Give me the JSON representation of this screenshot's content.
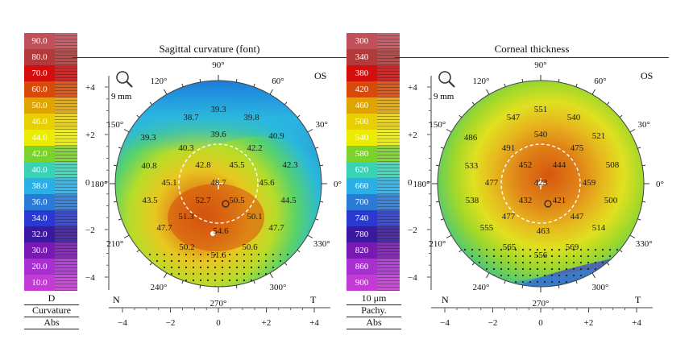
{
  "left_scale": {
    "values": [
      "90.0",
      "80.0",
      "70.0",
      "60.0",
      "50.0",
      "46.0",
      "44.0",
      "42.0",
      "40.0",
      "38.0",
      "36.0",
      "34.0",
      "32.0",
      "30.0",
      "20.0",
      "10.0"
    ],
    "colors": [
      "#c0505a",
      "#b23a3a",
      "#d40d0d",
      "#d84a08",
      "#e0a400",
      "#e8d000",
      "#ecec00",
      "#7ad22a",
      "#39d2b4",
      "#2ab0e6",
      "#2a7ad6",
      "#2a3ad0",
      "#3a18a0",
      "#7a18b4",
      "#a830d0",
      "#c43ad4"
    ],
    "unit": "D",
    "label1": "Curvature",
    "label2": "Abs"
  },
  "right_scale": {
    "values": [
      "300",
      "340",
      "380",
      "420",
      "460",
      "500",
      "540",
      "580",
      "620",
      "660",
      "700",
      "740",
      "780",
      "820",
      "860",
      "900"
    ],
    "colors": [
      "#c0505a",
      "#b23a3a",
      "#d40d0d",
      "#d84a08",
      "#e0a400",
      "#e8d000",
      "#ecec00",
      "#7ad22a",
      "#39d2b4",
      "#2ab0e6",
      "#2a7ad6",
      "#2a3ad0",
      "#3a18a0",
      "#7a18b4",
      "#a830d0",
      "#c43ad4"
    ],
    "unit": "10 μm",
    "label1": "Pachy.",
    "label2": "Abs"
  },
  "maps": [
    {
      "title": "Sagittal curvature (font)",
      "eye": "OS",
      "zoom": "9 mm",
      "angles": [
        "90°",
        "60°",
        "30°",
        "0°",
        "330°",
        "300°",
        "270°",
        "240°",
        "210°",
        "180°",
        "150°",
        "120°"
      ],
      "y_ticks": [
        "+4",
        "+2",
        "0",
        "−2",
        "−4"
      ],
      "x_ticks": [
        "−4",
        "−2",
        "0",
        "+2",
        "+4"
      ],
      "nasal": "N",
      "temporal": "T",
      "values": [
        "39.3",
        "38.7",
        "39.8",
        "39.3",
        "39.6",
        "40.9",
        "40.3",
        "42.2",
        "40.8",
        "42.8",
        "45.5",
        "42.3",
        "45.1",
        "48.7",
        "45.6",
        "43.5",
        "52.7",
        "50.5",
        "44.5",
        "51.3",
        "50.1",
        "47.7",
        "54.6",
        "47.7",
        "50.2",
        "50.6",
        "51.6"
      ]
    },
    {
      "title": "Corneal thickness",
      "eye": "OS",
      "zoom": "9 mm",
      "angles": [
        "90°",
        "60°",
        "30°",
        "0°",
        "330°",
        "300°",
        "270°",
        "240°",
        "210°",
        "180°",
        "150°",
        "120°"
      ],
      "y_ticks": [
        "+4",
        "+2",
        "0",
        "−2",
        "−4"
      ],
      "x_ticks": [
        "−4",
        "−2",
        "0",
        "+2",
        "+4"
      ],
      "nasal": "N",
      "temporal": "T",
      "values": [
        "551",
        "547",
        "540",
        "486",
        "540",
        "521",
        "491",
        "475",
        "533",
        "452",
        "444",
        "508",
        "477",
        "423",
        "459",
        "538",
        "432",
        "421",
        "500",
        "477",
        "447",
        "555",
        "463",
        "514",
        "565",
        "569",
        "556"
      ]
    }
  ]
}
